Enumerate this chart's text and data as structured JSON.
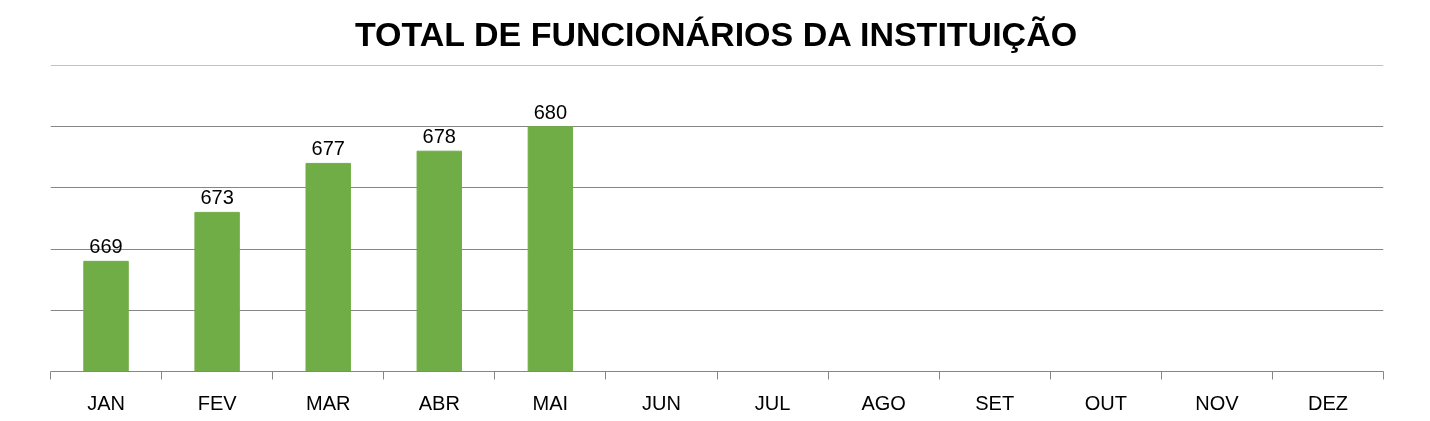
{
  "chart_data": {
    "type": "bar",
    "title": "TOTAL DE FUNCIONÁRIOS DA INSTITUIÇÃO",
    "categories": [
      "JAN",
      "FEV",
      "MAR",
      "ABR",
      "MAI",
      "JUN",
      "JUL",
      "AGO",
      "SET",
      "OUT",
      "NOV",
      "DEZ"
    ],
    "values": [
      669,
      673,
      677,
      678,
      680,
      null,
      null,
      null,
      null,
      null,
      null,
      null
    ],
    "color": "#70ad47",
    "ylim": [
      660,
      685
    ],
    "yticks": [
      {
        "value": 660,
        "label": null
      },
      {
        "value": 665,
        "label": null
      },
      {
        "value": 670,
        "label": null
      },
      {
        "value": 675,
        "label": null
      },
      {
        "value": 680,
        "label": null
      }
    ],
    "tick_labels": "x",
    "grid": "y",
    "data_labels": true
  }
}
